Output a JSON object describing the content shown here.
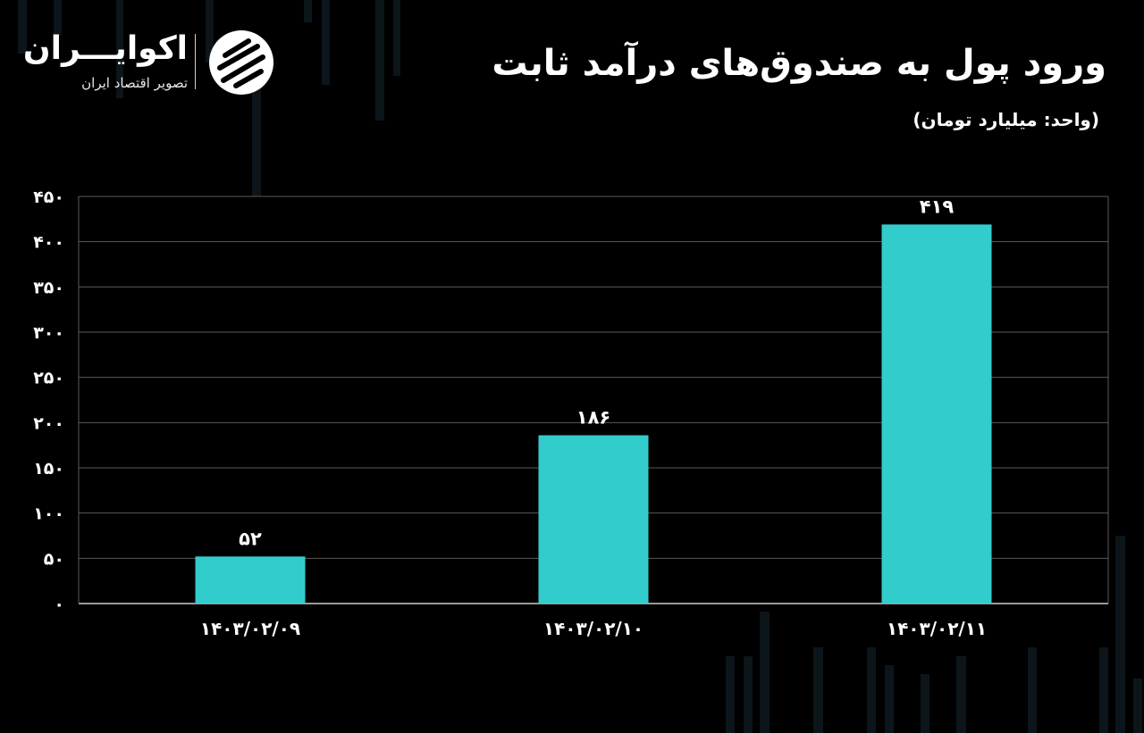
{
  "brand": {
    "name": "اکوایـــران",
    "tagline": "تصویر اقتصاد ایران"
  },
  "colors": {
    "background": "#000000",
    "bar": "#33cccc",
    "grid": "#5a5a5a",
    "text": "#ffffff"
  },
  "chart_data": {
    "type": "bar",
    "title": "ورود پول به صندوق‌های درآمد ثابت",
    "subtitle": "(واحد: میلیارد تومان)",
    "categories": [
      "۱۴۰۳/۰۲/۰۹",
      "۱۴۰۳/۰۲/۱۰",
      "۱۴۰۳/۰۲/۱۱"
    ],
    "values": [
      52,
      186,
      419
    ],
    "value_labels": [
      "۵۲",
      "۱۸۶",
      "۴۱۹"
    ],
    "ylim": [
      0,
      450
    ],
    "yticks": [
      0,
      50,
      100,
      150,
      200,
      250,
      300,
      350,
      400,
      450
    ],
    "ytick_labels": [
      "۰",
      "۵۰",
      "۱۰۰",
      "۱۵۰",
      "۲۰۰",
      "۲۵۰",
      "۳۰۰",
      "۳۵۰",
      "۴۰۰",
      "۴۵۰"
    ],
    "grid": true,
    "legend": "none"
  }
}
